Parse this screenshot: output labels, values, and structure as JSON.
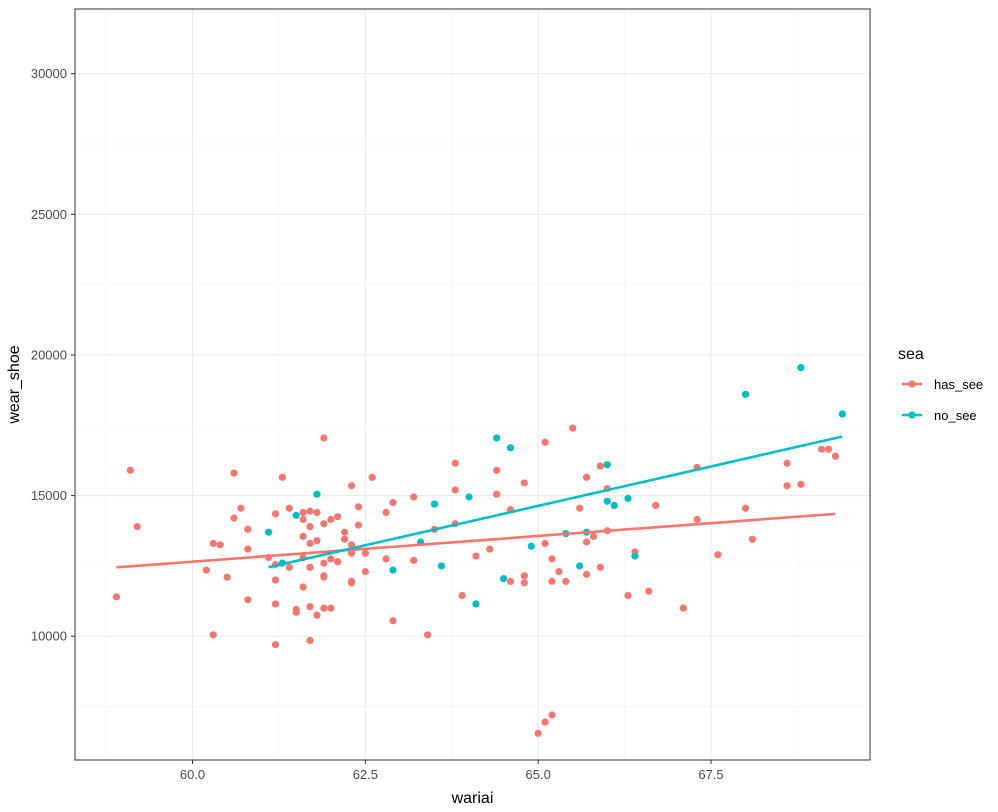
{
  "chart_data": {
    "type": "scatter",
    "title": "",
    "xlabel": "wariai",
    "ylabel": "wear_shoe",
    "xlim": [
      58.3,
      69.8
    ],
    "ylim": [
      5600,
      32300
    ],
    "x_ticks": [
      60.0,
      62.5,
      65.0,
      67.5
    ],
    "x_tick_labels": [
      "60.0",
      "62.5",
      "65.0",
      "67.5"
    ],
    "y_ticks": [
      10000,
      15000,
      20000,
      25000,
      30000
    ],
    "y_tick_labels": [
      "10000",
      "15000",
      "20000",
      "25000",
      "30000"
    ],
    "grid": true,
    "legend": {
      "title": "sea",
      "position": "right"
    },
    "series": [
      {
        "name": "has_see",
        "color": "#F8766D",
        "trend": [
          [
            58.9,
            12450
          ],
          [
            69.3,
            14350
          ]
        ],
        "points": [
          [
            58.9,
            11400
          ],
          [
            59.1,
            15900
          ],
          [
            59.2,
            13900
          ],
          [
            60.2,
            12350
          ],
          [
            60.3,
            13300
          ],
          [
            60.3,
            10050
          ],
          [
            60.4,
            13250
          ],
          [
            60.5,
            12100
          ],
          [
            60.6,
            14200
          ],
          [
            60.6,
            15800
          ],
          [
            60.7,
            14550
          ],
          [
            60.8,
            13800
          ],
          [
            60.8,
            13100
          ],
          [
            60.8,
            11300
          ],
          [
            61.1,
            12800
          ],
          [
            61.2,
            14350
          ],
          [
            61.2,
            12550
          ],
          [
            61.2,
            12000
          ],
          [
            61.2,
            11150
          ],
          [
            61.2,
            9700
          ],
          [
            61.3,
            15650
          ],
          [
            61.3,
            12600
          ],
          [
            61.4,
            14550
          ],
          [
            61.4,
            12450
          ],
          [
            61.5,
            10950
          ],
          [
            61.5,
            10850
          ],
          [
            61.6,
            14400
          ],
          [
            61.6,
            14150
          ],
          [
            61.6,
            13550
          ],
          [
            61.6,
            12800
          ],
          [
            61.6,
            11750
          ],
          [
            61.7,
            14450
          ],
          [
            61.7,
            13900
          ],
          [
            61.7,
            13300
          ],
          [
            61.7,
            12450
          ],
          [
            61.7,
            11050
          ],
          [
            61.7,
            9850
          ],
          [
            61.8,
            14400
          ],
          [
            61.8,
            13400
          ],
          [
            61.8,
            10750
          ],
          [
            61.9,
            17050
          ],
          [
            61.9,
            14000
          ],
          [
            61.9,
            12600
          ],
          [
            61.9,
            12100
          ],
          [
            61.9,
            12150
          ],
          [
            61.9,
            11000
          ],
          [
            62.0,
            14150
          ],
          [
            62.0,
            12750
          ],
          [
            62.0,
            11000
          ],
          [
            62.1,
            14250
          ],
          [
            62.1,
            12650
          ],
          [
            62.2,
            13700
          ],
          [
            62.2,
            13450
          ],
          [
            62.3,
            15350
          ],
          [
            62.3,
            13250
          ],
          [
            62.3,
            12950
          ],
          [
            62.3,
            11950
          ],
          [
            62.3,
            11900
          ],
          [
            62.4,
            14600
          ],
          [
            62.4,
            13950
          ],
          [
            62.5,
            12950
          ],
          [
            62.5,
            12300
          ],
          [
            62.6,
            15650
          ],
          [
            62.8,
            14400
          ],
          [
            62.8,
            12750
          ],
          [
            62.9,
            14750
          ],
          [
            62.9,
            10550
          ],
          [
            63.2,
            14950
          ],
          [
            63.2,
            12700
          ],
          [
            63.4,
            10050
          ],
          [
            63.5,
            13800
          ],
          [
            63.8,
            16150
          ],
          [
            63.8,
            15200
          ],
          [
            63.8,
            14000
          ],
          [
            63.9,
            11450
          ],
          [
            64.1,
            12850
          ],
          [
            64.3,
            13100
          ],
          [
            64.4,
            15900
          ],
          [
            64.4,
            15050
          ],
          [
            64.6,
            14500
          ],
          [
            64.6,
            11950
          ],
          [
            64.8,
            15450
          ],
          [
            64.8,
            12150
          ],
          [
            64.8,
            11900
          ],
          [
            65.0,
            6550
          ],
          [
            65.1,
            16900
          ],
          [
            65.1,
            13300
          ],
          [
            65.1,
            6950
          ],
          [
            65.2,
            12750
          ],
          [
            65.2,
            11950
          ],
          [
            65.2,
            7200
          ],
          [
            65.3,
            12300
          ],
          [
            65.4,
            11950
          ],
          [
            65.5,
            17400
          ],
          [
            65.6,
            14550
          ],
          [
            65.7,
            15650
          ],
          [
            65.7,
            13350
          ],
          [
            65.7,
            12200
          ],
          [
            65.8,
            13550
          ],
          [
            65.9,
            16050
          ],
          [
            65.9,
            12450
          ],
          [
            66.0,
            15250
          ],
          [
            66.0,
            13750
          ],
          [
            66.3,
            11450
          ],
          [
            66.4,
            13000
          ],
          [
            66.6,
            11600
          ],
          [
            66.7,
            14650
          ],
          [
            67.1,
            11000
          ],
          [
            67.3,
            16000
          ],
          [
            67.3,
            14150
          ],
          [
            67.6,
            12900
          ],
          [
            68.0,
            14550
          ],
          [
            68.1,
            13450
          ],
          [
            68.6,
            16150
          ],
          [
            68.6,
            15350
          ],
          [
            68.8,
            15400
          ],
          [
            69.1,
            16650
          ],
          [
            69.2,
            16650
          ],
          [
            69.3,
            16400
          ]
        ]
      },
      {
        "name": "no_see",
        "color": "#00BFC4",
        "trend": [
          [
            61.1,
            12450
          ],
          [
            69.4,
            17100
          ]
        ],
        "points": [
          [
            61.1,
            13700
          ],
          [
            61.3,
            12600
          ],
          [
            61.5,
            14300
          ],
          [
            61.8,
            15050
          ],
          [
            62.9,
            12350
          ],
          [
            63.3,
            13350
          ],
          [
            63.5,
            14700
          ],
          [
            63.6,
            12500
          ],
          [
            64.0,
            14950
          ],
          [
            64.1,
            11150
          ],
          [
            64.4,
            17050
          ],
          [
            64.5,
            12050
          ],
          [
            64.6,
            16700
          ],
          [
            64.9,
            13200
          ],
          [
            65.4,
            13650
          ],
          [
            65.6,
            12500
          ],
          [
            65.7,
            13700
          ],
          [
            66.0,
            16100
          ],
          [
            66.0,
            14800
          ],
          [
            66.1,
            14650
          ],
          [
            66.3,
            14900
          ],
          [
            66.4,
            12850
          ],
          [
            68.0,
            18600
          ],
          [
            68.8,
            19550
          ],
          [
            69.4,
            17900
          ]
        ]
      }
    ]
  }
}
